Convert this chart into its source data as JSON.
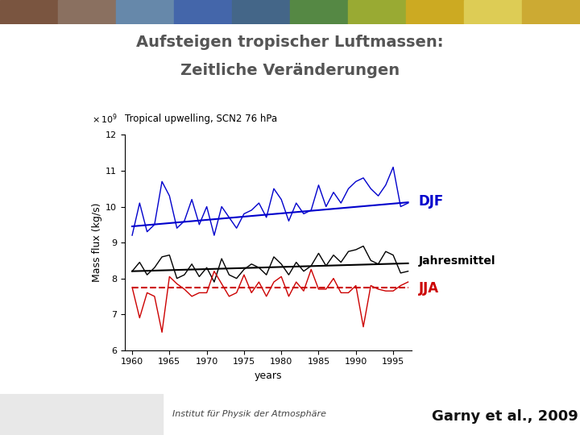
{
  "title_line1": "Aufsteigen tropischer Luftmassen:",
  "title_line2": "Zeitliche Veränderungen",
  "chart_title": "Tropical upwelling, SCN2 76 hPa",
  "ylabel": "Mass flux (kg/s)",
  "xlabel": "years",
  "ylim": [
    6,
    12
  ],
  "yticks": [
    6,
    7,
    8,
    9,
    10,
    11,
    12
  ],
  "xlim": [
    1959,
    1997.5
  ],
  "xticks": [
    1960,
    1965,
    1970,
    1975,
    1980,
    1985,
    1990,
    1995
  ],
  "slide_bg": "#ffffff",
  "label_djf": "DJF",
  "label_annual": "Jahresmittel",
  "label_jja": "JJA",
  "color_djf": "#0000cc",
  "color_annual": "#000000",
  "color_jja": "#cc0000",
  "footer_text": "Institut für Physik der Atmosphäre",
  "garny_text": "Garny et al., 2009",
  "years": [
    1960,
    1961,
    1962,
    1963,
    1964,
    1965,
    1966,
    1967,
    1968,
    1969,
    1970,
    1971,
    1972,
    1973,
    1974,
    1975,
    1976,
    1977,
    1978,
    1979,
    1980,
    1981,
    1982,
    1983,
    1984,
    1985,
    1986,
    1987,
    1988,
    1989,
    1990,
    1991,
    1992,
    1993,
    1994,
    1995,
    1996,
    1997
  ],
  "djf": [
    9.2,
    10.1,
    9.3,
    9.5,
    10.7,
    10.3,
    9.4,
    9.6,
    10.2,
    9.5,
    10.0,
    9.2,
    10.0,
    9.7,
    9.4,
    9.8,
    9.9,
    10.1,
    9.7,
    10.5,
    10.2,
    9.6,
    10.1,
    9.8,
    9.9,
    10.6,
    10.0,
    10.4,
    10.1,
    10.5,
    10.7,
    10.8,
    10.5,
    10.3,
    10.6,
    11.1,
    10.0,
    10.1
  ],
  "annual": [
    8.2,
    8.45,
    8.1,
    8.3,
    8.6,
    8.65,
    8.0,
    8.1,
    8.4,
    8.05,
    8.3,
    7.9,
    8.55,
    8.1,
    8.0,
    8.25,
    8.4,
    8.3,
    8.1,
    8.6,
    8.4,
    8.1,
    8.45,
    8.2,
    8.35,
    8.7,
    8.35,
    8.65,
    8.45,
    8.75,
    8.8,
    8.9,
    8.5,
    8.4,
    8.75,
    8.65,
    8.15,
    8.2
  ],
  "jja": [
    7.75,
    6.9,
    7.6,
    7.5,
    6.5,
    8.05,
    7.85,
    7.7,
    7.5,
    7.6,
    7.6,
    8.2,
    7.85,
    7.5,
    7.6,
    8.1,
    7.6,
    7.9,
    7.5,
    7.9,
    8.05,
    7.5,
    7.9,
    7.65,
    8.25,
    7.7,
    7.7,
    8.0,
    7.6,
    7.6,
    7.8,
    6.65,
    7.8,
    7.7,
    7.65,
    7.65,
    7.8,
    7.9
  ],
  "djf_trend_y": [
    9.45,
    10.12
  ],
  "annual_trend_y": [
    8.2,
    8.42
  ],
  "jja_trend_y": [
    7.75,
    7.75
  ],
  "header_colors": [
    "#8b6555",
    "#9999aa",
    "#7799bb",
    "#5577aa",
    "#55aa66",
    "#88bb44",
    "#bbcc55",
    "#ddcc44"
  ],
  "footer_bg": "#d0d0d0",
  "footer_left_bg": "#e8e8e8"
}
